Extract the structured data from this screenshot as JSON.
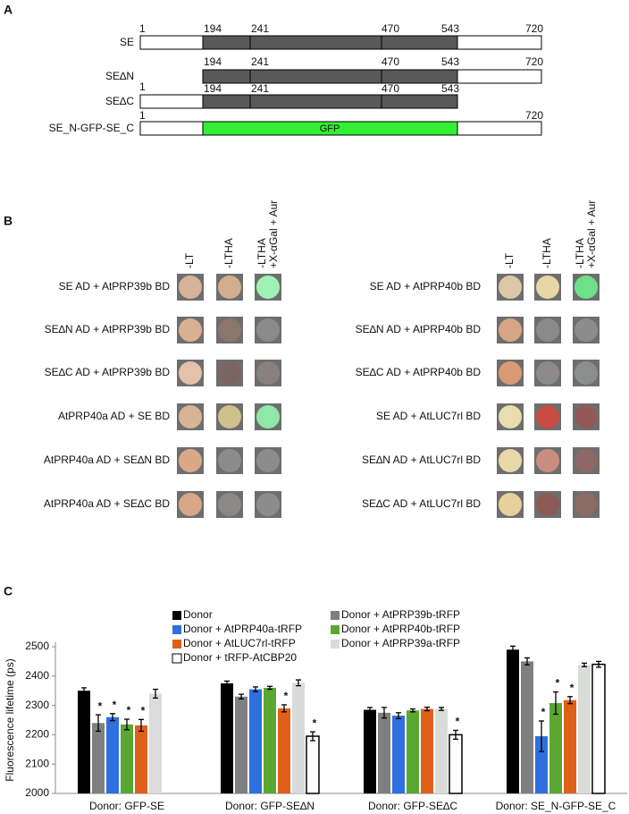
{
  "panel_a": {
    "label": "A",
    "constructs": [
      {
        "name": "SE",
        "numbers": [
          1,
          194,
          241,
          470,
          543,
          720
        ]
      },
      {
        "name": "SE∆N",
        "numbers": [
          194,
          241,
          470,
          543,
          720
        ]
      },
      {
        "name": "SE∆C",
        "numbers": [
          1,
          194,
          241,
          470,
          543
        ]
      },
      {
        "name": "SE_N-GFP-SE_C",
        "numbers": [
          1,
          720
        ],
        "insert": "GFP"
      }
    ]
  },
  "panel_b": {
    "label": "B",
    "columns": [
      "-LT",
      "-LTHA",
      "-LTHA",
      "+X-αGal + Aur"
    ],
    "left_rows": [
      "SE AD + AtPRP39b BD",
      "SE∆N AD + AtPRP39b BD",
      "SE∆C AD + AtPRP39b BD",
      "AtPRP40a AD + SE BD",
      "AtPRP40a AD + SE∆N BD",
      "AtPRP40a AD + SE∆C BD"
    ],
    "right_rows": [
      "SE AD + AtPRP40b BD",
      "SE∆N AD + AtPRP40b BD",
      "SE∆C AD + AtPRP40b BD",
      "SE AD + AtLUC7rl BD",
      "SE∆N AD + AtLUC7rl BD",
      "SE∆C AD + AtLUC7rl BD"
    ]
  },
  "chart_data": {
    "type": "bar",
    "panel_label": "C",
    "y_label": "Fluorescence lifetime (ps)",
    "categories": [
      "Donor: GFP-SE",
      "Donor: GFP-SE∆N",
      "Donor: GFP-SE∆C",
      "Donor: SE_N-GFP-SE_C"
    ],
    "ylim": [
      2000,
      2500
    ],
    "yticks": [
      2000,
      2100,
      2200,
      2300,
      2400,
      2500
    ],
    "sig_label": "*",
    "series": [
      {
        "name": "Donor",
        "color": "#000000",
        "values": [
          2350,
          2375,
          2285,
          2490
        ],
        "errors": [
          10,
          8,
          8,
          12
        ],
        "sig": [
          false,
          false,
          false,
          false
        ]
      },
      {
        "name": "Donor + AtPRP39b-tRFP",
        "color": "#7f7f7f",
        "values": [
          2240,
          2330,
          2275,
          2450
        ],
        "errors": [
          28,
          8,
          18,
          12
        ],
        "sig": [
          true,
          false,
          false,
          false
        ]
      },
      {
        "name": "Donor + AtPRP40a-tRFP",
        "color": "#2f6fe0",
        "values": [
          2260,
          2355,
          2265,
          2195
        ],
        "errors": [
          12,
          8,
          10,
          52
        ],
        "sig": [
          true,
          false,
          false,
          true
        ]
      },
      {
        "name": "Donor + AtPRP40b-tRFP",
        "color": "#5aa832",
        "values": [
          2235,
          2360,
          2283,
          2308
        ],
        "errors": [
          18,
          5,
          5,
          38
        ],
        "sig": [
          true,
          false,
          false,
          true
        ]
      },
      {
        "name": "Donor + AtLUC7rl-tRFP",
        "color": "#e0601a",
        "values": [
          2232,
          2290,
          2288,
          2318
        ],
        "errors": [
          20,
          12,
          6,
          12
        ],
        "sig": [
          true,
          true,
          false,
          true
        ]
      },
      {
        "name": "Donor + AtPRP39a-tRFP",
        "color": "#d9dcd9",
        "values": [
          2340,
          2377,
          2288,
          2438
        ],
        "errors": [
          15,
          10,
          5,
          6
        ],
        "sig": [
          false,
          false,
          false,
          false
        ]
      },
      {
        "name": "Donor + tRFP-AtCBP20",
        "color": "#ffffff",
        "values": [
          null,
          2195,
          2200,
          2440
        ],
        "errors": [
          null,
          15,
          15,
          10
        ],
        "sig": [
          false,
          true,
          true,
          false
        ]
      }
    ]
  }
}
